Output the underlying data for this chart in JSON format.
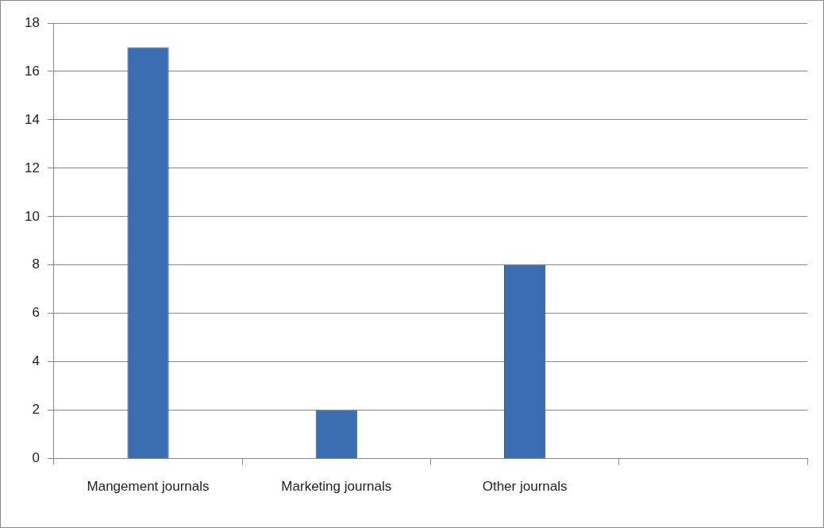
{
  "chart_data": {
    "type": "bar",
    "categories": [
      "Mangement journals",
      "Marketing journals",
      "Other journals",
      null
    ],
    "values": [
      17,
      2,
      8,
      null
    ],
    "color": "#3b6db3",
    "ylim": [
      0,
      18
    ],
    "yticks": [
      0,
      2,
      4,
      6,
      8,
      10,
      12,
      14,
      16,
      18
    ],
    "grid": "y",
    "legend": false
  }
}
